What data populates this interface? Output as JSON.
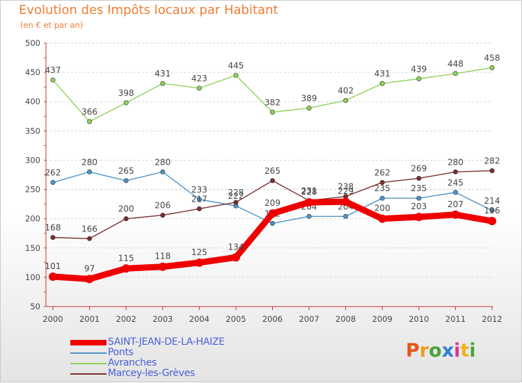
{
  "title": "Evolution des Impôts locaux par Habitant",
  "subtitle": "(en € et par an)",
  "logo": {
    "text": "Proxiti",
    "letters": [
      {
        "ch": "P",
        "color": "#e8541a"
      },
      {
        "ch": "r",
        "color": "#f39b1e"
      },
      {
        "ch": "o",
        "color": "#4aa43a"
      },
      {
        "ch": "x",
        "color": "#2f7fd1"
      },
      {
        "ch": "i",
        "color": "#d63a8c"
      },
      {
        "ch": "t",
        "color": "#f0b21a"
      },
      {
        "ch": "i",
        "color": "#4aa43a"
      }
    ]
  },
  "chart_data": {
    "type": "line",
    "title": "Evolution des Impôts locaux par Habitant",
    "subtitle": "(en € et par an)",
    "x": [
      "2000",
      "2001",
      "2002",
      "2003",
      "2004",
      "2005",
      "2006",
      "2007",
      "2008",
      "2009",
      "2010",
      "2011",
      "2012"
    ],
    "ylim": [
      50,
      500
    ],
    "yticks": [
      "50",
      "100",
      "150",
      "200",
      "250",
      "300",
      "350",
      "400",
      "450",
      "500"
    ],
    "grid": "horizontal dashed",
    "legend_position": "bottom-left",
    "series": [
      {
        "name": "SAINT-JEAN-DE-LA-HAIZE",
        "color": "#ee0000",
        "bold": true,
        "values": [
          101,
          97,
          115,
          118,
          125,
          134,
          209,
          228,
          229,
          200,
          203,
          207,
          196
        ],
        "labels": [
          "101",
          "97",
          "115",
          "118",
          "125",
          "134",
          "209",
          "228",
          "229",
          "200",
          "203",
          "207",
          "196"
        ]
      },
      {
        "name": "Ponts",
        "color": "#4d94c8",
        "values": [
          262,
          280,
          265,
          280,
          233,
          222,
          192,
          204,
          204,
          235,
          235,
          245,
          214
        ],
        "labels": [
          "262",
          "280",
          "265",
          "280",
          "233",
          "222",
          "192",
          "204",
          "204",
          "235",
          "235",
          "245",
          "214"
        ]
      },
      {
        "name": "Avranches",
        "color": "#8fd25a",
        "values": [
          437,
          366,
          398,
          431,
          423,
          445,
          382,
          389,
          402,
          431,
          439,
          448,
          458
        ],
        "labels": [
          "437",
          "366",
          "398",
          "431",
          "423",
          "445",
          "382",
          "389",
          "402",
          "431",
          "439",
          "448",
          "458"
        ]
      },
      {
        "name": "Marcey-les-Grèves",
        "color": "#7a2d2d",
        "values": [
          168,
          166,
          200,
          206,
          217,
          228,
          265,
          231,
          238,
          262,
          269,
          280,
          282
        ],
        "labels": [
          "168",
          "166",
          "200",
          "206",
          "217",
          "228",
          "265",
          "231",
          "238",
          "262",
          "269",
          "280",
          "282"
        ]
      }
    ]
  }
}
